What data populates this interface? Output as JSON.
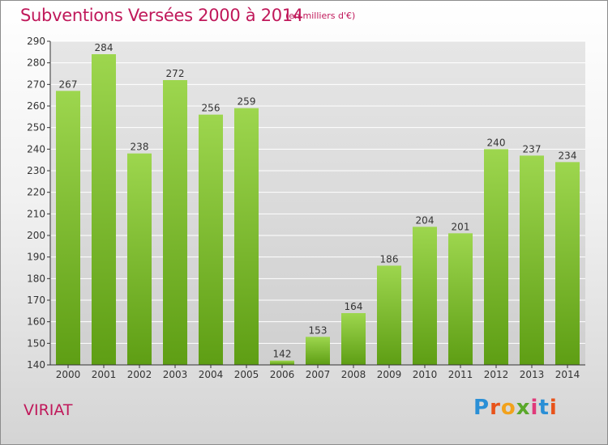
{
  "title": "Subventions Versées 2000 à 2014",
  "subtitle": "(en milliers d'€)",
  "commune": "VIRIAT",
  "logo_text": "Proxiti",
  "colors": {
    "title": "#c0185a",
    "bar_light": "#9dd64e",
    "bar_dark": "#5e9e14",
    "grid": "#ffffff",
    "axis": "#333333"
  },
  "chart_data": {
    "type": "bar",
    "title": "Subventions Versées 2000 à 2014",
    "categories": [
      "2000",
      "2001",
      "2002",
      "2003",
      "2004",
      "2005",
      "2006",
      "2007",
      "2008",
      "2009",
      "2010",
      "2011",
      "2012",
      "2013",
      "2014"
    ],
    "values": [
      267,
      284,
      238,
      272,
      256,
      259,
      142,
      153,
      164,
      186,
      204,
      201,
      240,
      237,
      234
    ],
    "ylim": [
      140,
      290
    ],
    "yticks": [
      140,
      150,
      160,
      170,
      180,
      190,
      200,
      210,
      220,
      230,
      240,
      250,
      260,
      270,
      280,
      290
    ],
    "grid": true,
    "data_labels": true
  }
}
